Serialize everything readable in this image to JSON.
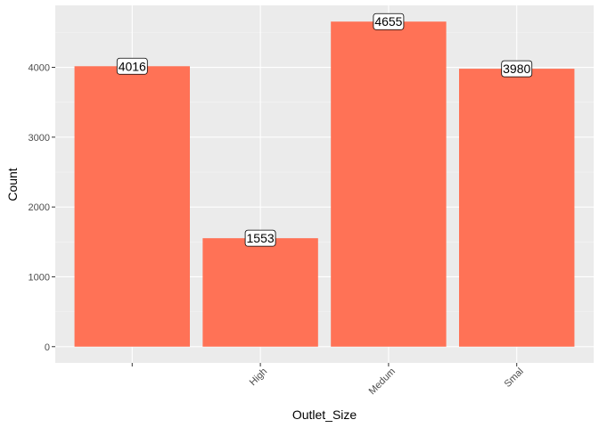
{
  "chart_data": {
    "type": "bar",
    "title": "",
    "xlabel": "Outlet_Size",
    "ylabel": "Count",
    "categories": [
      "",
      "High",
      "Medium",
      "Small"
    ],
    "category_labels": [
      "",
      "High",
      "Medum",
      "Smal"
    ],
    "values": [
      4016,
      1553,
      4655,
      3980
    ],
    "data_labels": [
      "4016",
      "1553",
      "4655",
      "3980"
    ],
    "ylim": [
      -232.75,
      4887.75
    ],
    "yticks": [
      0,
      1000,
      2000,
      3000,
      4000
    ],
    "ytick_labels": [
      "0",
      "1000",
      "2000",
      "3000",
      "4000"
    ],
    "grid": true,
    "colors": {
      "bar": "#FF7256",
      "panel": "#EBEBEB",
      "grid_major": "#FFFFFF",
      "grid_minor": "#F5F5F5"
    }
  }
}
